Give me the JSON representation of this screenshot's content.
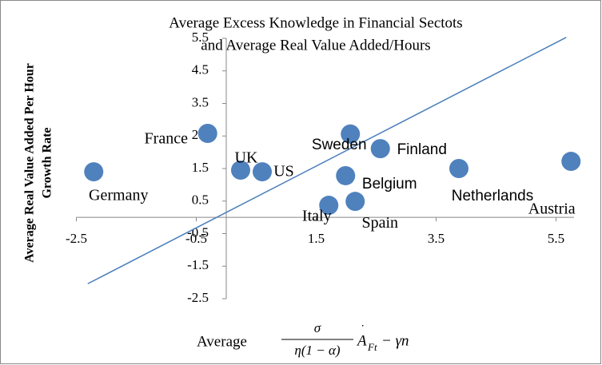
{
  "chart_data": {
    "type": "scatter",
    "title": [
      "Average Excess Knowledge in Financial Sectots",
      "and Average Real Value Added/Hours"
    ],
    "y_label": [
      "Average Real Value Added Per Hour",
      "Growth Rate"
    ],
    "x_label": {
      "prefix": "Average",
      "numerator": "σ",
      "denominator": "η(1 − α)",
      "base": "A",
      "dot": "˙",
      "sub": "Ft",
      "tail": " − γn"
    },
    "labels": [
      "Germany",
      "France",
      "UK",
      "US",
      "Italy",
      "Belgium",
      "Spain",
      "Sweden",
      "Finland",
      "Netherlands",
      "Austria"
    ],
    "x": [
      -2.21,
      -0.31,
      0.24,
      0.6,
      1.71,
      1.99,
      2.15,
      2.07,
      2.57,
      3.88,
      5.75
    ],
    "y": [
      1.4,
      2.58,
      1.45,
      1.4,
      0.37,
      1.28,
      0.49,
      2.56,
      2.11,
      1.5,
      1.72
    ],
    "color": "#4f81bd",
    "trendline": {
      "x": [
        -2.31,
        5.67
      ],
      "y": [
        -2.04,
        5.53
      ],
      "color": "#4a7ebb"
    },
    "xlim": [
      -2.5,
      5.8
    ],
    "ylim": [
      -2.5,
      5.5
    ],
    "xticks": [
      -2.5,
      -0.5,
      1.5,
      3.5,
      5.5
    ],
    "yticks": [
      -2.5,
      -1.5,
      -0.5,
      0.5,
      1.5,
      2.5,
      3.5,
      4.5,
      5.5
    ]
  }
}
